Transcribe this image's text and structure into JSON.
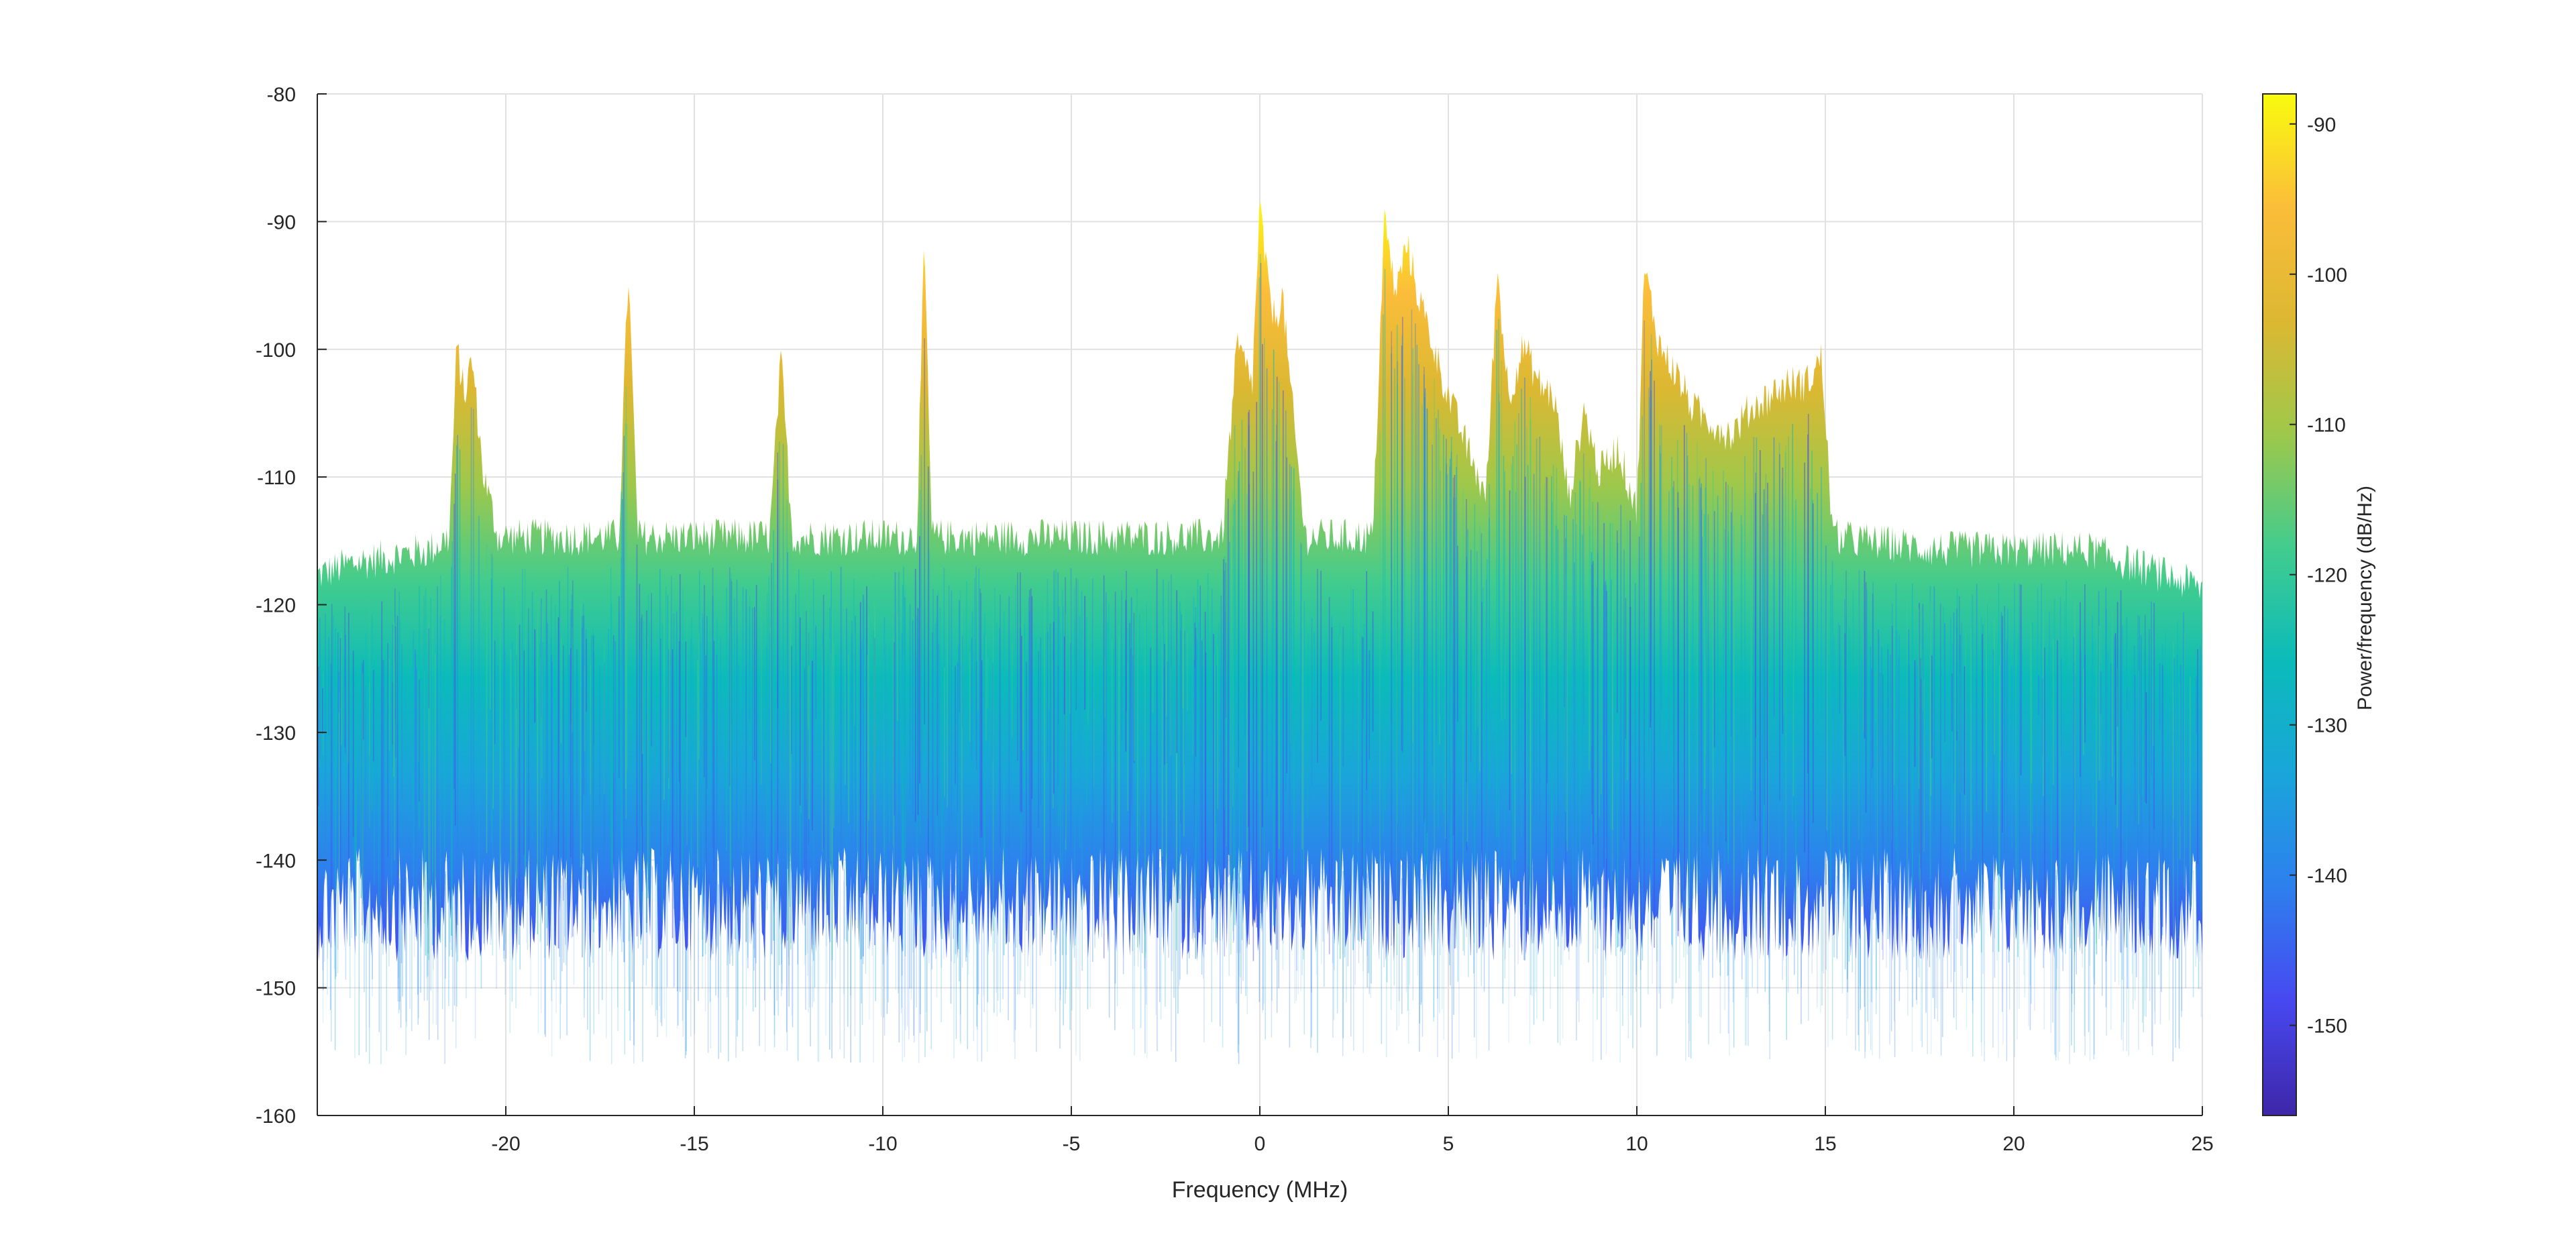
{
  "chart_data": {
    "type": "area",
    "title": "",
    "xlabel": "Frequency (MHz)",
    "ylabel": "",
    "xlim": [
      -25,
      25
    ],
    "ylim": [
      -160,
      -80
    ],
    "x_ticks": [
      -20,
      -15,
      -10,
      -5,
      0,
      5,
      10,
      15,
      20,
      25
    ],
    "x_tick_labels": [
      "-20",
      "-15",
      "-10",
      "-5",
      "0",
      "5",
      "10",
      "15",
      "20",
      "25"
    ],
    "y_ticks": [
      -80,
      -90,
      -100,
      -110,
      -120,
      -130,
      -140,
      -150,
      -160
    ],
    "y_tick_labels": [
      "-80",
      "-90",
      "-100",
      "-110",
      "-120",
      "-130",
      "-140",
      "-150",
      "-160"
    ],
    "grid": true,
    "noise_floor_dbhz": -115,
    "series": [
      {
        "x": [
          -25,
          -24,
          -22,
          -21.5,
          -21.3,
          -21.1,
          -20.9,
          -20.6,
          -20.2,
          -18,
          -17,
          -16.75,
          -16.5,
          -15,
          -13,
          -12.7,
          -12.4,
          -10,
          -9.1,
          -8.9,
          -8.7,
          -5,
          -1,
          -0.6,
          -0.2,
          0.0,
          0.2,
          0.4,
          0.6,
          0.8,
          1.2,
          3.0,
          3.3,
          3.6,
          3.9,
          4.2,
          4.6,
          5.0,
          5.5,
          6.0,
          6.3,
          6.6,
          7.0,
          7.4,
          7.8,
          8.2,
          8.6,
          9.0,
          9.5,
          10.0,
          10.2,
          10.6,
          11.0,
          11.5,
          12.0,
          12.5,
          13.0,
          13.5,
          14.0,
          14.5,
          14.9,
          15.2,
          18,
          22,
          24,
          25
        ],
        "y": [
          -118,
          -117,
          -116,
          -115,
          -100,
          -104,
          -101,
          -110,
          -115,
          -115,
          -115,
          -94,
          -115,
          -115,
          -115,
          -101,
          -115,
          -115,
          -115,
          -92,
          -115,
          -115,
          -115,
          -100,
          -103,
          -89,
          -95,
          -98,
          -96,
          -103,
          -115,
          -115,
          -90,
          -96,
          -92,
          -96,
          -100,
          -104,
          -108,
          -112,
          -94,
          -104,
          -100,
          -103,
          -104,
          -112,
          -105,
          -110,
          -108,
          -113,
          -94,
          -100,
          -102,
          -105,
          -106,
          -107,
          -105,
          -104,
          -103,
          -103,
          -101,
          -115,
          -116,
          -116,
          -118,
          -119
        ]
      }
    ],
    "colorbar": {
      "label": "Power/frequency (dB/Hz)",
      "ticks": [
        -90,
        -100,
        -110,
        -120,
        -130,
        -140,
        -150
      ],
      "tick_labels": [
        "-90",
        "-100",
        "-110",
        "-120",
        "-130",
        "-140",
        "-150"
      ],
      "range": [
        -156,
        -88
      ],
      "colormap": [
        "#3e26a8",
        "#4748f0",
        "#2e7fee",
        "#1aa5da",
        "#0bbbba",
        "#42cc8e",
        "#9ec84b",
        "#dcb832",
        "#fbbd3a",
        "#f9fb0e"
      ]
    }
  }
}
